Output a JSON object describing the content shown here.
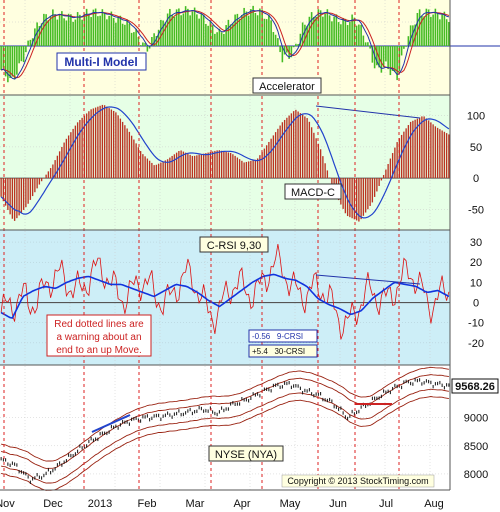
{
  "chart_data": [
    {
      "type": "bar",
      "panel": "Accelerator",
      "labels": {
        "legend": "Multi-I Model",
        "name": "Accelerator"
      },
      "grid": true,
      "colors": {
        "background": "#ffffe0",
        "bars": "#44bb22",
        "line": "#2233aa",
        "signal": "#cc2222"
      }
    },
    {
      "type": "bar",
      "panel": "MACD-C",
      "labels": {
        "name": "MACD-C"
      },
      "ylim": [
        -80,
        130
      ],
      "yticks": [
        100,
        50,
        0,
        -50
      ],
      "grid": true,
      "colors": {
        "background": "#e6ffe6",
        "bars": "#bb3322",
        "line": "#2244cc"
      }
    },
    {
      "type": "line",
      "panel": "C-RSI 9,30",
      "labels": {
        "name": "C-RSI 9,30",
        "warning": [
          "Red dotted lines are",
          "a warning about an",
          "end to an up Move."
        ],
        "readout9": "-0.56   9-CRSI",
        "readout30": "+5.4   30-CRSI"
      },
      "ylim": [
        -30,
        35
      ],
      "yticks": [
        30,
        20,
        10,
        0,
        -10,
        -20
      ],
      "grid": true,
      "colors": {
        "background": "#cdeef7",
        "fast": "#dd1111",
        "slow": "#1133dd"
      }
    },
    {
      "type": "line",
      "panel": "NYSE (NYA)",
      "labels": {
        "name": "NYSE (NYA)",
        "last_value": "9568.26",
        "copyright": "Copyright © 2013 StockTiming.com"
      },
      "ylim": [
        7750,
        9900
      ],
      "yticks": [
        9000,
        8500,
        8000
      ],
      "grid": true,
      "colors": {
        "background": "#ffffff",
        "price": "#111111",
        "bands": "#992211"
      }
    }
  ],
  "x_axis": {
    "tick_labels": [
      "Nov",
      "Dec",
      "2013",
      "Feb",
      "Mar",
      "Apr",
      "May",
      "Jun",
      "Jul",
      "Aug"
    ]
  },
  "warning_lines": true
}
